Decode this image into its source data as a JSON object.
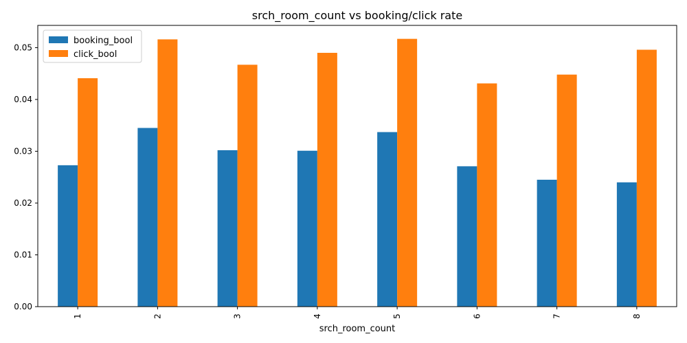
{
  "chart_data": {
    "type": "bar",
    "title": "srch_room_count vs booking/click rate",
    "xlabel": "srch_room_count",
    "ylabel": "",
    "categories": [
      "1",
      "2",
      "3",
      "4",
      "5",
      "6",
      "7",
      "8"
    ],
    "series": [
      {
        "name": "booking_bool",
        "color": "#1f77b4",
        "values": [
          0.0273,
          0.0345,
          0.0302,
          0.0301,
          0.0337,
          0.0271,
          0.0245,
          0.024
        ]
      },
      {
        "name": "click_bool",
        "color": "#ff7f0e",
        "values": [
          0.0441,
          0.0516,
          0.0467,
          0.049,
          0.0517,
          0.0431,
          0.0448,
          0.0496
        ]
      }
    ],
    "ylim": [
      0,
      0.0543
    ],
    "yticks": [
      "0.00",
      "0.01",
      "0.02",
      "0.03",
      "0.04",
      "0.05"
    ],
    "grid": false,
    "legend_position": "top-left"
  }
}
